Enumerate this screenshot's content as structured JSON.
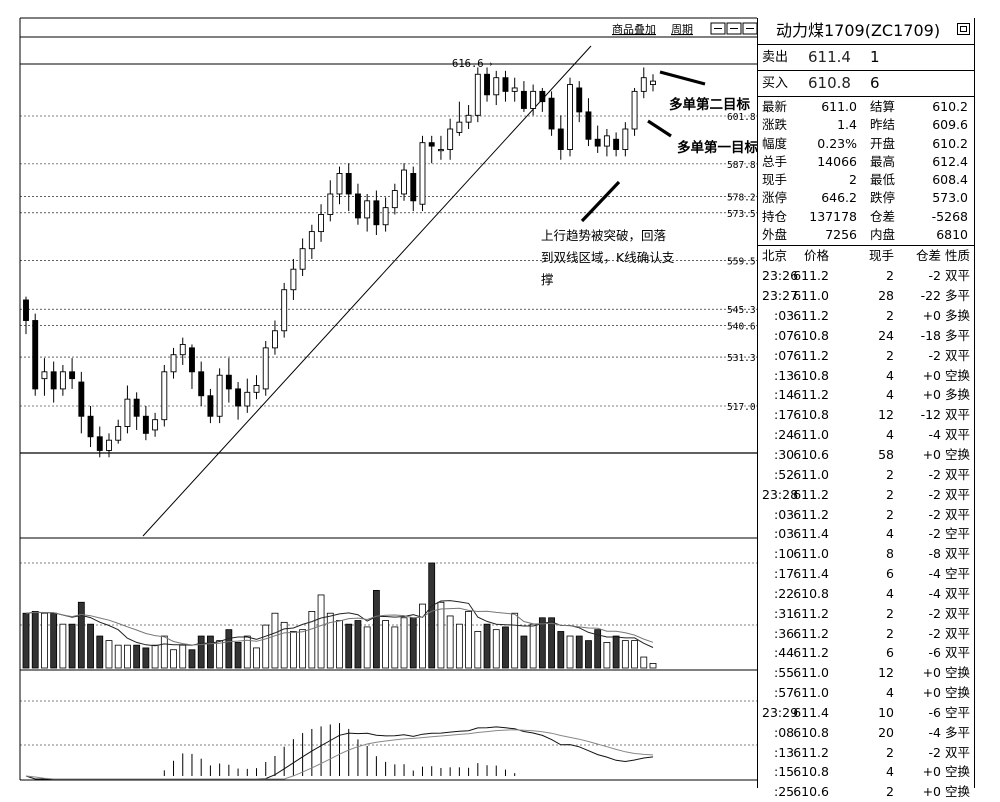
{
  "toolbar": {
    "overlay_label": "商品叠加",
    "period_label": "周期"
  },
  "chart": {
    "price_levels": [
      "601.8",
      "587.8",
      "578.2",
      "573.5",
      "559.5",
      "545.3",
      "540.6",
      "531.3",
      "517.0"
    ],
    "peak_label": "616.6",
    "annotations": {
      "target2": "多单第二目标",
      "target1": "多单第一目标",
      "comment_line1": "上行趋势被突破，回落",
      "comment_line2": "到双线区域，K线确认支",
      "comment_line3": "撑"
    }
  },
  "quote": {
    "title": "动力煤1709(ZC1709)",
    "sell": {
      "label": "卖出",
      "price": "611.4",
      "qty": "1"
    },
    "buy": {
      "label": "买入",
      "price": "610.8",
      "qty": "6"
    },
    "stats": [
      [
        "最新",
        "611.0",
        "结算",
        "610.2"
      ],
      [
        "涨跌",
        "1.4",
        "昨结",
        "609.6"
      ],
      [
        "幅度",
        "0.23%",
        "开盘",
        "610.2"
      ],
      [
        "总手",
        "14066",
        "最高",
        "612.4"
      ],
      [
        "现手",
        "2",
        "最低",
        "608.4"
      ],
      [
        "涨停",
        "646.2",
        "跌停",
        "573.0"
      ],
      [
        "持仓",
        "137178",
        "仓差",
        "-5268"
      ],
      [
        "外盘",
        "7256",
        "内盘",
        "6810"
      ]
    ],
    "ticks_header": [
      "北京",
      "价格",
      "现手",
      "仓差",
      "性质"
    ],
    "ticks": [
      [
        "23:26",
        "611.2",
        "2",
        "-2",
        "双平"
      ],
      [
        "23:27",
        "611.0",
        "28",
        "-22",
        "多平"
      ],
      [
        ":03",
        "611.2",
        "2",
        "+0",
        "多换"
      ],
      [
        ":07",
        "610.8",
        "24",
        "-18",
        "多平"
      ],
      [
        ":07",
        "611.2",
        "2",
        "-2",
        "双平"
      ],
      [
        ":13",
        "610.8",
        "4",
        "+0",
        "空换"
      ],
      [
        ":14",
        "611.2",
        "4",
        "+0",
        "多换"
      ],
      [
        ":17",
        "610.8",
        "12",
        "-12",
        "双平"
      ],
      [
        ":24",
        "611.0",
        "4",
        "-4",
        "双平"
      ],
      [
        ":30",
        "610.6",
        "58",
        "+0",
        "空换"
      ],
      [
        ":52",
        "611.0",
        "2",
        "-2",
        "双平"
      ],
      [
        "23:28",
        "611.2",
        "2",
        "-2",
        "双平"
      ],
      [
        ":03",
        "611.2",
        "2",
        "-2",
        "双平"
      ],
      [
        ":03",
        "611.4",
        "4",
        "-2",
        "空平"
      ],
      [
        ":10",
        "611.0",
        "8",
        "-8",
        "双平"
      ],
      [
        ":17",
        "611.4",
        "6",
        "-4",
        "空平"
      ],
      [
        ":22",
        "610.8",
        "4",
        "-4",
        "双平"
      ],
      [
        ":31",
        "611.2",
        "2",
        "-2",
        "双平"
      ],
      [
        ":36",
        "611.2",
        "2",
        "-2",
        "双平"
      ],
      [
        ":44",
        "611.2",
        "6",
        "-6",
        "双平"
      ],
      [
        ":55",
        "611.0",
        "12",
        "+0",
        "空换"
      ],
      [
        ":57",
        "611.0",
        "4",
        "+0",
        "空换"
      ],
      [
        "23:29",
        "611.4",
        "10",
        "-6",
        "空平"
      ],
      [
        ":08",
        "610.8",
        "20",
        "-4",
        "多平"
      ],
      [
        ":13",
        "611.2",
        "2",
        "-2",
        "双平"
      ],
      [
        ":15",
        "610.8",
        "4",
        "+0",
        "空换"
      ],
      [
        ":25",
        "610.6",
        "2",
        "+0",
        "空换"
      ]
    ]
  },
  "chart_data": {
    "type": "candlestick",
    "instrument": "动力煤1709(ZC1709)",
    "price_levels": [
      601.8,
      587.8,
      578.2,
      573.5,
      559.5,
      545.3,
      540.6,
      531.3,
      517.0
    ],
    "candles": [
      [
        548,
        542,
        549,
        538
      ],
      [
        542,
        522,
        544,
        520
      ],
      [
        525,
        527,
        531,
        520
      ],
      [
        527,
        522,
        530,
        518
      ],
      [
        522,
        527,
        529,
        520
      ],
      [
        527,
        525,
        531,
        522
      ],
      [
        524,
        514,
        527,
        509
      ],
      [
        514,
        508,
        517,
        505
      ],
      [
        508,
        504,
        511,
        502
      ],
      [
        504,
        507,
        509,
        502
      ],
      [
        507,
        511,
        513,
        506
      ],
      [
        511,
        519,
        523,
        509
      ],
      [
        519,
        514,
        521,
        510
      ],
      [
        514,
        509,
        517,
        507
      ],
      [
        510,
        513,
        515,
        508
      ],
      [
        513,
        527,
        529,
        511
      ],
      [
        527,
        532,
        534,
        525
      ],
      [
        532,
        535,
        537,
        529
      ],
      [
        534,
        527,
        535,
        522
      ],
      [
        527,
        520,
        530,
        517
      ],
      [
        520,
        514,
        522,
        512
      ],
      [
        514,
        526,
        528,
        512
      ],
      [
        526,
        522,
        531,
        518
      ],
      [
        522,
        517,
        524,
        513
      ],
      [
        517,
        521,
        525,
        515
      ],
      [
        521,
        523,
        526,
        519
      ],
      [
        522,
        534,
        536,
        520
      ],
      [
        534,
        539,
        542,
        532
      ],
      [
        539,
        551,
        553,
        537
      ],
      [
        551,
        557,
        560,
        548
      ],
      [
        557,
        563,
        566,
        555
      ],
      [
        563,
        568,
        570,
        560
      ],
      [
        568,
        573,
        576,
        565
      ],
      [
        573,
        579,
        583,
        571
      ],
      [
        579,
        585,
        587,
        576
      ],
      [
        585,
        579,
        588,
        574
      ],
      [
        579,
        572,
        582,
        570
      ],
      [
        572,
        577,
        579,
        568
      ],
      [
        577,
        570,
        580,
        567
      ],
      [
        570,
        575,
        578,
        568
      ],
      [
        575,
        580,
        582,
        573
      ],
      [
        579,
        586,
        588,
        577
      ],
      [
        585,
        577,
        587,
        574
      ],
      [
        576,
        594,
        596,
        574
      ],
      [
        594,
        593,
        596,
        588
      ],
      [
        592,
        592,
        596,
        589
      ],
      [
        592,
        598,
        601,
        589
      ],
      [
        597,
        600,
        606,
        596
      ],
      [
        600,
        602,
        605,
        598
      ],
      [
        602,
        614,
        616,
        600
      ],
      [
        614,
        608,
        616,
        606
      ],
      [
        608,
        613,
        615,
        605
      ],
      [
        613,
        609,
        615,
        606
      ],
      [
        609,
        610,
        613,
        606
      ],
      [
        609,
        604,
        612,
        603
      ],
      [
        604,
        609,
        611,
        602
      ],
      [
        609,
        606,
        610,
        603
      ],
      [
        607,
        598,
        609,
        596
      ],
      [
        598,
        592,
        602,
        589
      ],
      [
        592,
        611,
        613,
        590
      ],
      [
        610,
        603,
        612,
        600
      ],
      [
        603,
        595,
        607,
        593
      ],
      [
        595,
        593,
        599,
        591
      ],
      [
        593,
        596,
        598,
        590
      ],
      [
        595,
        592,
        597,
        590
      ],
      [
        592,
        598,
        600,
        590
      ],
      [
        598,
        609,
        610,
        596
      ],
      [
        609,
        613,
        616,
        607
      ],
      [
        611,
        612,
        614,
        609
      ]
    ],
    "volume": [
      60,
      62,
      60,
      60,
      48,
      48,
      72,
      48,
      35,
      30,
      25,
      25,
      25,
      22,
      25,
      35,
      20,
      25,
      20,
      35,
      35,
      30,
      42,
      28,
      35,
      22,
      47,
      60,
      50,
      40,
      42,
      62,
      80,
      60,
      52,
      48,
      52,
      45,
      85,
      52,
      45,
      55,
      55,
      70,
      115,
      72,
      57,
      48,
      62,
      40,
      48,
      42,
      45,
      60,
      35,
      48,
      55,
      55,
      40,
      35,
      35,
      30,
      42,
      28,
      35,
      30,
      30,
      12,
      5
    ]
  }
}
